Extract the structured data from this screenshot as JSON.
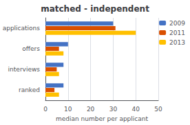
{
  "chart_data": {
    "type": "bar",
    "orientation": "horizontal",
    "title": "matched - independent",
    "categories": [
      "applications",
      "offers",
      "interviews",
      "ranked"
    ],
    "series": [
      {
        "name": "2009",
        "color": "#4472C4",
        "values": [
          30,
          10,
          8,
          8
        ]
      },
      {
        "name": "2011",
        "color": "#D94F00",
        "values": [
          31,
          6,
          5,
          4
        ]
      },
      {
        "name": "2013",
        "color": "#FFC000",
        "values": [
          40,
          8,
          6,
          6
        ]
      }
    ],
    "xlim": [
      0,
      50
    ],
    "xticks": [
      0,
      10,
      20,
      30,
      40,
      50
    ],
    "xlabel": "median number per applicant",
    "grid": true,
    "legend": "right"
  }
}
